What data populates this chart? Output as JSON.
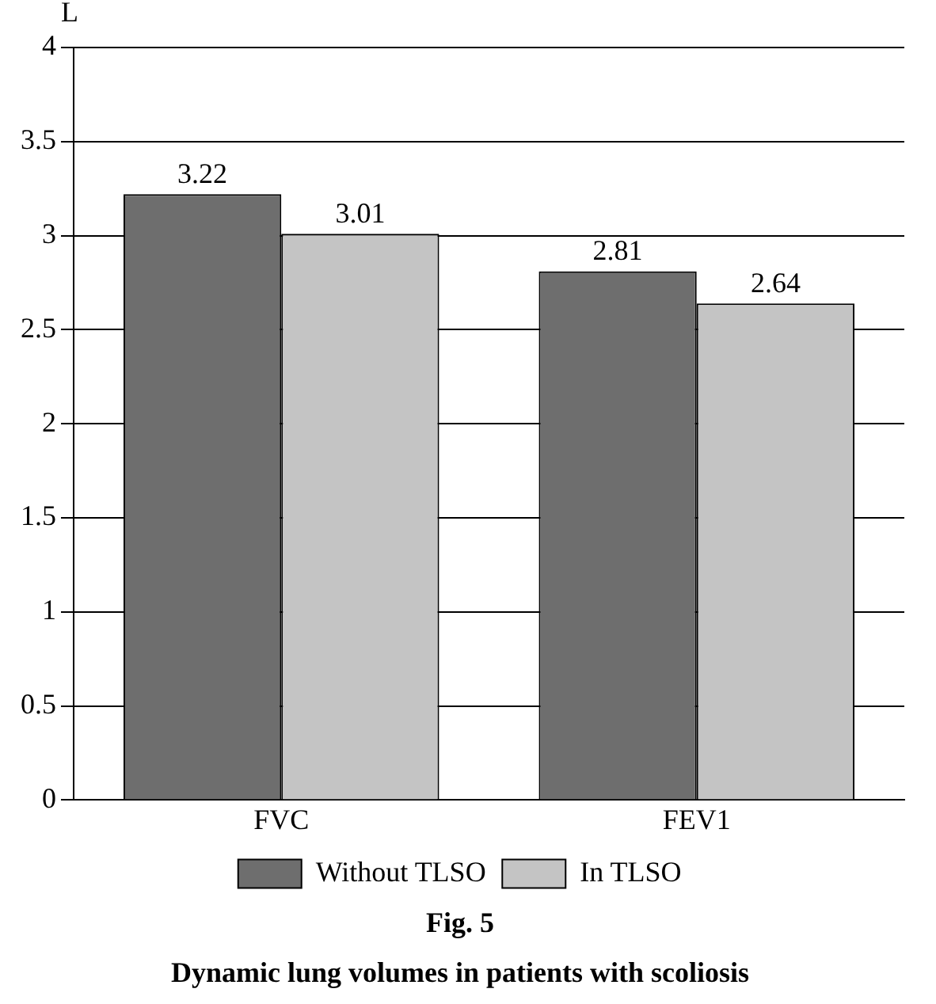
{
  "chart_data": {
    "type": "bar",
    "title": "Dynamic lung volumes in patients with scoliosis",
    "ylabel": "L",
    "annotations": [
      "Fig. 5"
    ],
    "categories": [
      "FVC",
      "FEV1"
    ],
    "series": [
      {
        "name": "Without TLSO",
        "color": "#6e6e6e",
        "values": [
          3.22,
          2.81
        ]
      },
      {
        "name": "In TLSO",
        "color": "#c4c4c4",
        "values": [
          3.01,
          2.64
        ]
      }
    ],
    "ylim": [
      0,
      4
    ],
    "yticks": [
      0,
      0.5,
      1,
      1.5,
      2,
      2.5,
      3,
      3.5,
      4
    ],
    "grid": "y",
    "legend": "bottom",
    "data_labels": true
  }
}
